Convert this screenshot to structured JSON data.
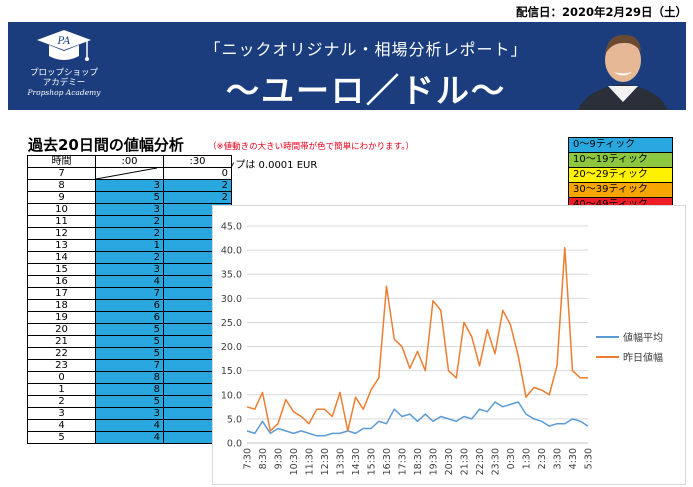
{
  "header": {
    "date": "配信日：2020年2月29日（土）"
  },
  "banner": {
    "subtitle": "「ニックオリジナル・相場分析レポート」",
    "title": "〜ユーロ／ドル〜",
    "logo": {
      "mark": "PA",
      "line1": "プロップショップ",
      "line2": "アカデミー",
      "line3": "Propshop Academy"
    },
    "colors": {
      "background": "#1b3d7e"
    }
  },
  "section": {
    "title": "過去20日間の値幅分析",
    "note": "（※値動きの大きい時間帯が色で簡単にわかります。）",
    "pip": "1ピップは 0.0001 EUR"
  },
  "table": {
    "headers": [
      "時間",
      ":00",
      ":30"
    ],
    "first_row": {
      "time": "7",
      "v30": "0"
    },
    "rows": [
      {
        "time": "8",
        "v00": "3",
        "v30": "2"
      },
      {
        "time": "9",
        "v00": "5",
        "v30": "2"
      },
      {
        "time": "10",
        "v00": "3",
        "v30": "2"
      },
      {
        "time": "11",
        "v00": "2",
        "v30": "3"
      },
      {
        "time": "12",
        "v00": "2",
        "v30": "2"
      },
      {
        "time": "13",
        "v00": "1",
        "v30": "2"
      },
      {
        "time": "14",
        "v00": "2",
        "v30": "2"
      },
      {
        "time": "15",
        "v00": "3",
        "v30": "3"
      },
      {
        "time": "16",
        "v00": "4",
        "v30": "4"
      },
      {
        "time": "17",
        "v00": "7",
        "v30": "6"
      },
      {
        "time": "18",
        "v00": "6",
        "v30": "5"
      },
      {
        "time": "19",
        "v00": "6",
        "v30": "4"
      },
      {
        "time": "20",
        "v00": "5",
        "v30": "5"
      },
      {
        "time": "21",
        "v00": "5",
        "v30": "6"
      },
      {
        "time": "22",
        "v00": "5",
        "v30": "7"
      },
      {
        "time": "23",
        "v00": "7",
        "v30": "8"
      },
      {
        "time": "0",
        "v00": "8",
        "v30": "8"
      },
      {
        "time": "1",
        "v00": "8",
        "v30": "6"
      },
      {
        "time": "2",
        "v00": "5",
        "v30": "5"
      },
      {
        "time": "3",
        "v00": "3",
        "v30": "4"
      },
      {
        "time": "4",
        "v00": "4",
        "v30": "5"
      },
      {
        "time": "5",
        "v00": "4",
        "v30": "3"
      }
    ],
    "cell_color": "#29a8e0"
  },
  "legend": [
    {
      "label": "0〜9ティック",
      "color": "#29a8e0"
    },
    {
      "label": "10〜19ティック",
      "color": "#8dc63f"
    },
    {
      "label": "20〜29ティック",
      "color": "#fff200"
    },
    {
      "label": "30〜39ティック",
      "color": "#f7a600"
    },
    {
      "label": "40〜49ティック",
      "color": "#ee1c25"
    }
  ],
  "chart_data": {
    "type": "line",
    "x": [
      "7:30",
      "8:00",
      "8:30",
      "9:00",
      "9:30",
      "10:00",
      "10:30",
      "11:00",
      "11:30",
      "12:00",
      "12:30",
      "13:00",
      "13:30",
      "14:00",
      "14:30",
      "15:00",
      "15:30",
      "16:00",
      "16:30",
      "17:00",
      "17:30",
      "18:00",
      "18:30",
      "19:00",
      "19:30",
      "20:00",
      "20:30",
      "21:00",
      "21:30",
      "22:00",
      "22:30",
      "23:00",
      "23:30",
      "0:00",
      "0:30",
      "1:00",
      "1:30",
      "2:00",
      "2:30",
      "3:00",
      "3:30",
      "4:00",
      "4:30",
      "5:00",
      "5:30"
    ],
    "x_tick_labels": [
      "7:30",
      "8:30",
      "9:30",
      "10:30",
      "11:30",
      "12:30",
      "13:30",
      "14:30",
      "15:30",
      "16:30",
      "17:30",
      "18:30",
      "19:30",
      "20:30",
      "21:30",
      "22:30",
      "23:30",
      "0:30",
      "1:30",
      "2:30",
      "3:30",
      "4:30",
      "5:30"
    ],
    "series": [
      {
        "name": "値幅平均",
        "color": "#5b9bd5",
        "values": [
          2.5,
          2.0,
          4.5,
          2.0,
          3.0,
          2.5,
          2.0,
          2.5,
          2.0,
          1.5,
          1.5,
          2.0,
          2.0,
          2.5,
          2.0,
          3.0,
          3.0,
          4.5,
          4.0,
          7.0,
          5.5,
          6.0,
          4.5,
          6.0,
          4.5,
          5.5,
          5.0,
          4.5,
          5.5,
          5.0,
          7.0,
          6.5,
          8.5,
          7.5,
          8.0,
          8.5,
          6.0,
          5.0,
          4.5,
          3.5,
          4.0,
          4.0,
          5.0,
          4.5,
          3.5
        ]
      },
      {
        "name": "昨日値幅",
        "color": "#ed7d31",
        "values": [
          7.5,
          7.0,
          10.5,
          2.5,
          4.0,
          9.0,
          6.5,
          5.5,
          4.0,
          7.0,
          7.0,
          5.5,
          10.5,
          2.5,
          9.5,
          7.0,
          11.0,
          13.5,
          32.5,
          21.5,
          20.0,
          15.5,
          19.0,
          15.0,
          29.5,
          27.5,
          15.0,
          13.5,
          25.0,
          22.0,
          16.0,
          23.5,
          18.5,
          27.5,
          24.5,
          18.0,
          9.5,
          11.5,
          11.0,
          10.0,
          16.0,
          40.5,
          15.0,
          13.5,
          13.5
        ]
      }
    ],
    "ylim": [
      0,
      45
    ],
    "yticks": [
      "0.0",
      "5.0",
      "10.0",
      "15.0",
      "20.0",
      "25.0",
      "30.0",
      "35.0",
      "40.0",
      "45.0"
    ],
    "grid": true,
    "legend_position": "right"
  }
}
